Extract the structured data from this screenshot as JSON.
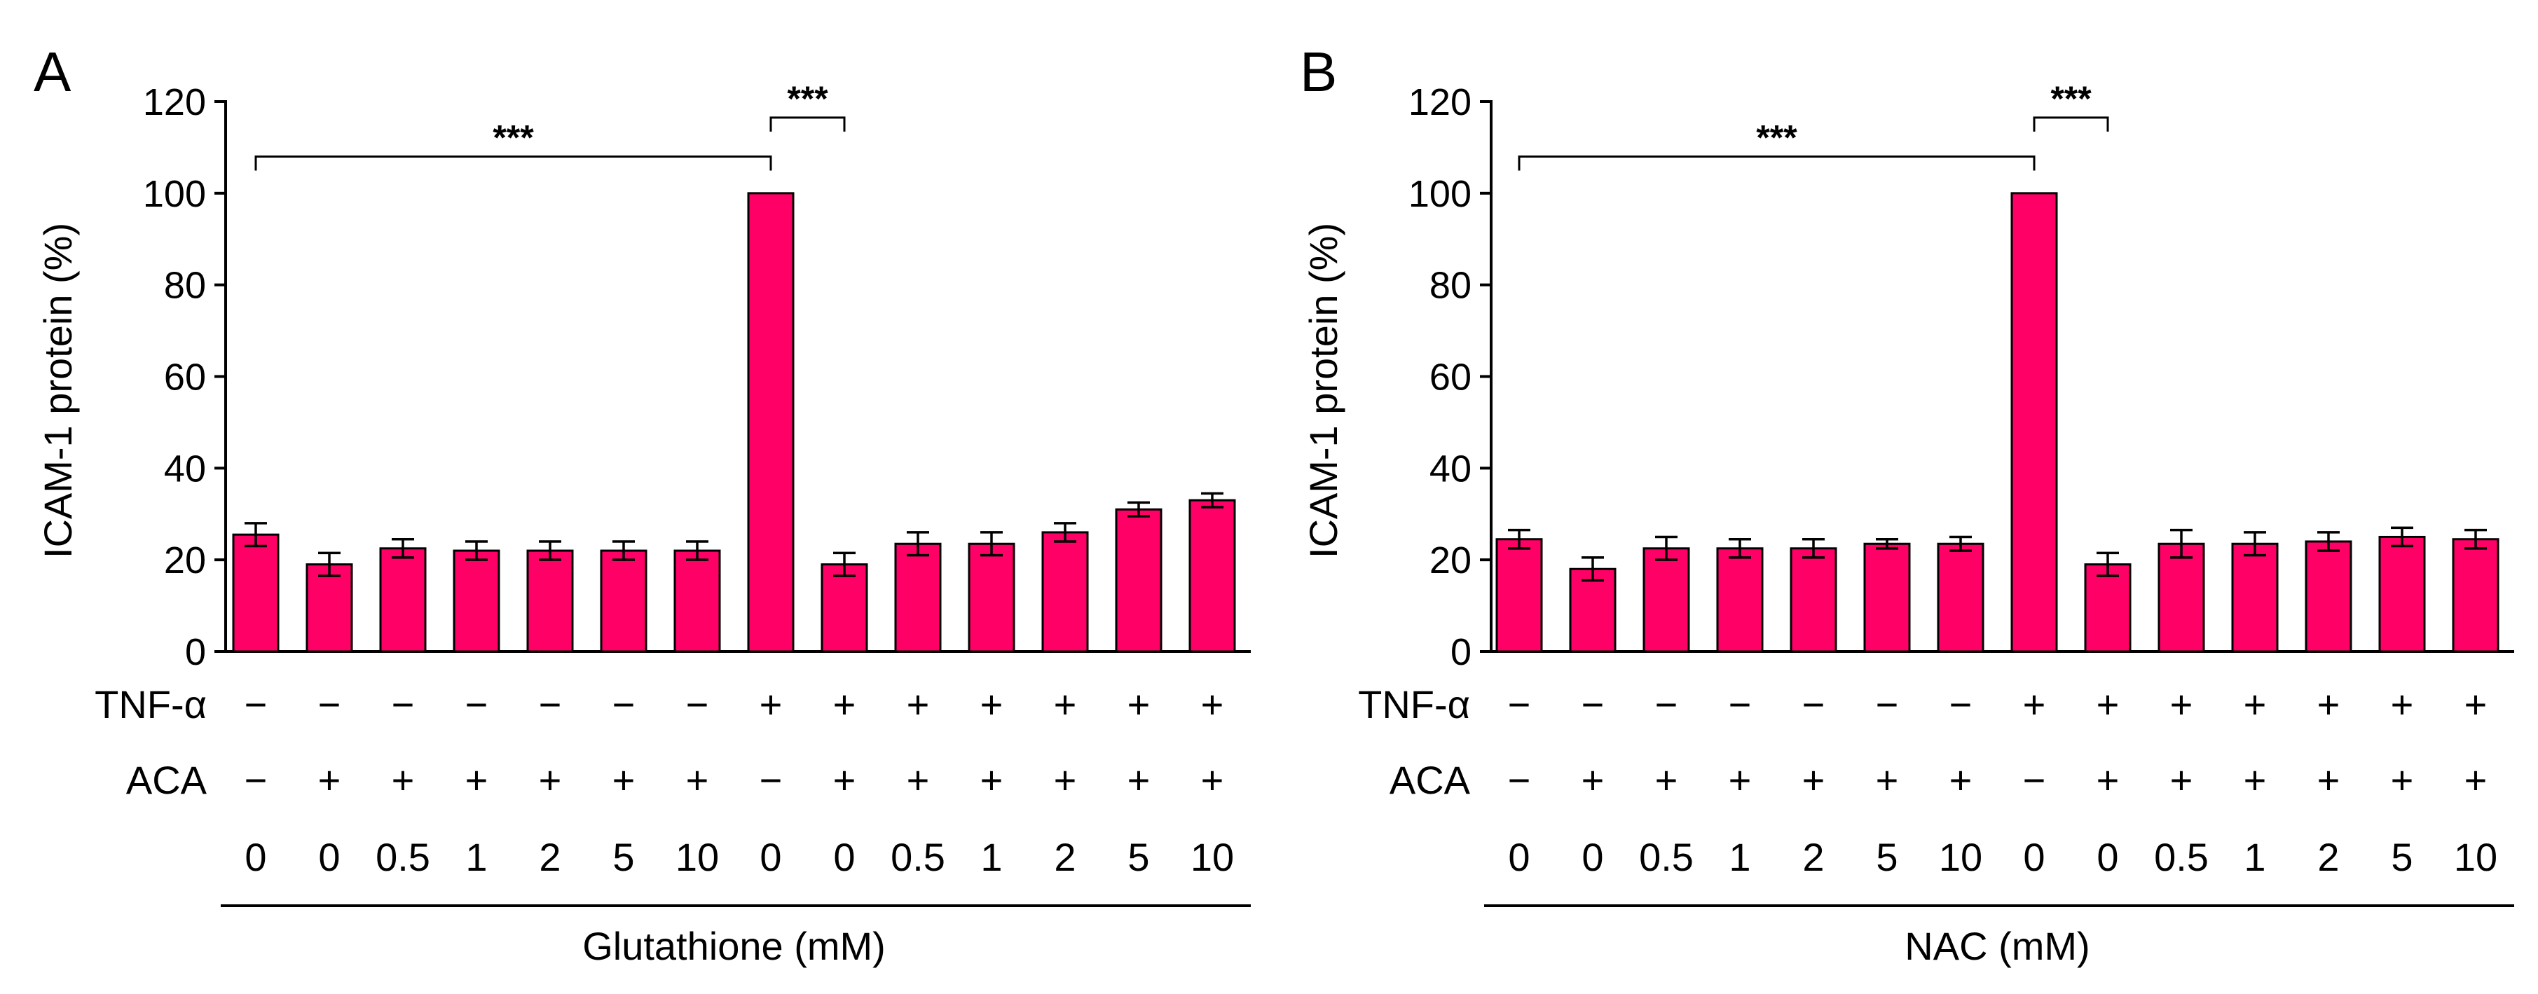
{
  "colors": {
    "bar": "#ff0066",
    "axis": "#000000"
  },
  "chart_data": [
    {
      "type": "bar",
      "panel": "A",
      "ylabel": "ICAM-1 protein (%)",
      "xlabel": "Glutathione (mM)",
      "ylim": [
        0,
        120
      ],
      "yticks": [
        "0",
        "20",
        "40",
        "60",
        "80",
        "100",
        "120"
      ],
      "row_labels": {
        "tnf": "TNF-α",
        "aca": "ACA"
      },
      "categories": [
        "0",
        "0",
        "0.5",
        "1",
        "2",
        "5",
        "10",
        "0",
        "0",
        "0.5",
        "1",
        "2",
        "5",
        "10"
      ],
      "tnf": [
        "−",
        "−",
        "−",
        "−",
        "−",
        "−",
        "−",
        "+",
        "+",
        "+",
        "+",
        "+",
        "+",
        "+"
      ],
      "aca": [
        "−",
        "+",
        "+",
        "+",
        "+",
        "+",
        "+",
        "−",
        "+",
        "+",
        "+",
        "+",
        "+",
        "+"
      ],
      "values": [
        25.5,
        19,
        22.5,
        22,
        22,
        22,
        22,
        100,
        19,
        23.5,
        23.5,
        26,
        31,
        33
      ],
      "errors": [
        2.5,
        2.5,
        2,
        2,
        2,
        2,
        2,
        0,
        2.5,
        2.5,
        2.5,
        2,
        1.5,
        1.5
      ],
      "significance": [
        {
          "from": 0,
          "to": 7,
          "level": 108,
          "label": "***"
        },
        {
          "from": 7,
          "to": 8,
          "level": 116.5,
          "label": "***"
        }
      ]
    },
    {
      "type": "bar",
      "panel": "B",
      "ylabel": "ICAM-1 protein (%)",
      "xlabel": "NAC (mM)",
      "ylim": [
        0,
        120
      ],
      "yticks": [
        "0",
        "20",
        "40",
        "60",
        "80",
        "100",
        "120"
      ],
      "row_labels": {
        "tnf": "TNF-α",
        "aca": "ACA"
      },
      "categories": [
        "0",
        "0",
        "0.5",
        "1",
        "2",
        "5",
        "10",
        "0",
        "0",
        "0.5",
        "1",
        "2",
        "5",
        "10"
      ],
      "tnf": [
        "−",
        "−",
        "−",
        "−",
        "−",
        "−",
        "−",
        "+",
        "+",
        "+",
        "+",
        "+",
        "+",
        "+"
      ],
      "aca": [
        "−",
        "+",
        "+",
        "+",
        "+",
        "+",
        "+",
        "−",
        "+",
        "+",
        "+",
        "+",
        "+",
        "+"
      ],
      "values": [
        24.5,
        18,
        22.5,
        22.5,
        22.5,
        23.5,
        23.5,
        100,
        19,
        23.5,
        23.5,
        24,
        25,
        24.5
      ],
      "errors": [
        2,
        2.5,
        2.5,
        2,
        2,
        1,
        1.5,
        0,
        2.5,
        3,
        2.5,
        2,
        2,
        2
      ],
      "significance": [
        {
          "from": 0,
          "to": 7,
          "level": 108,
          "label": "***"
        },
        {
          "from": 7,
          "to": 8,
          "level": 116.5,
          "label": "***"
        }
      ]
    }
  ]
}
